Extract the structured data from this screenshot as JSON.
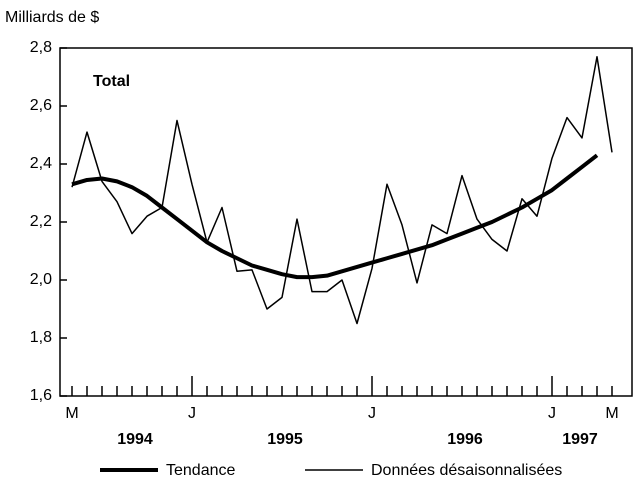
{
  "chart_data": {
    "type": "line",
    "y_label": "Milliards de $",
    "annotation": "Total",
    "categories": [
      "M",
      null,
      null,
      null,
      null,
      null,
      null,
      null,
      "J",
      null,
      null,
      null,
      null,
      null,
      null,
      null,
      null,
      null,
      null,
      null,
      "J",
      null,
      null,
      null,
      null,
      null,
      null,
      null,
      null,
      null,
      null,
      null,
      "J",
      null,
      null,
      null,
      "M"
    ],
    "year_labels": [
      "1994",
      "1995",
      "1996",
      "1997"
    ],
    "series": [
      {
        "name": "Tendance",
        "color": "#000000",
        "width": 4,
        "values": [
          2.33,
          2.345,
          2.35,
          2.34,
          2.32,
          2.29,
          2.25,
          2.21,
          2.17,
          2.13,
          2.1,
          2.075,
          2.05,
          2.035,
          2.02,
          2.01,
          2.01,
          2.015,
          2.03,
          2.045,
          2.06,
          2.075,
          2.09,
          2.105,
          2.12,
          2.14,
          2.16,
          2.18,
          2.2,
          2.225,
          2.25,
          2.28,
          2.31,
          2.35,
          2.39,
          2.43,
          null
        ]
      },
      {
        "name": "Données désaisonnalisées",
        "color": "#000000",
        "width": 1.5,
        "values": [
          2.32,
          2.51,
          2.34,
          2.27,
          2.16,
          2.22,
          2.25,
          2.55,
          2.33,
          2.13,
          2.25,
          2.03,
          2.035,
          1.9,
          1.94,
          2.21,
          1.96,
          1.96,
          2.0,
          1.85,
          2.04,
          2.33,
          2.19,
          1.99,
          2.19,
          2.16,
          2.36,
          2.21,
          2.14,
          2.1,
          2.28,
          2.22,
          2.42,
          2.56,
          2.49,
          2.77,
          2.44
        ]
      }
    ],
    "ylim": [
      1.6,
      2.8
    ],
    "yticks": [
      {
        "value": 1.6,
        "label": "1,6"
      },
      {
        "value": 1.8,
        "label": "1,8"
      },
      {
        "value": 2.0,
        "label": "2,0"
      },
      {
        "value": 2.2,
        "label": "2,2"
      },
      {
        "value": 2.4,
        "label": "2,4"
      },
      {
        "value": 2.6,
        "label": "2,6"
      },
      {
        "value": 2.8,
        "label": "2,8"
      }
    ]
  }
}
